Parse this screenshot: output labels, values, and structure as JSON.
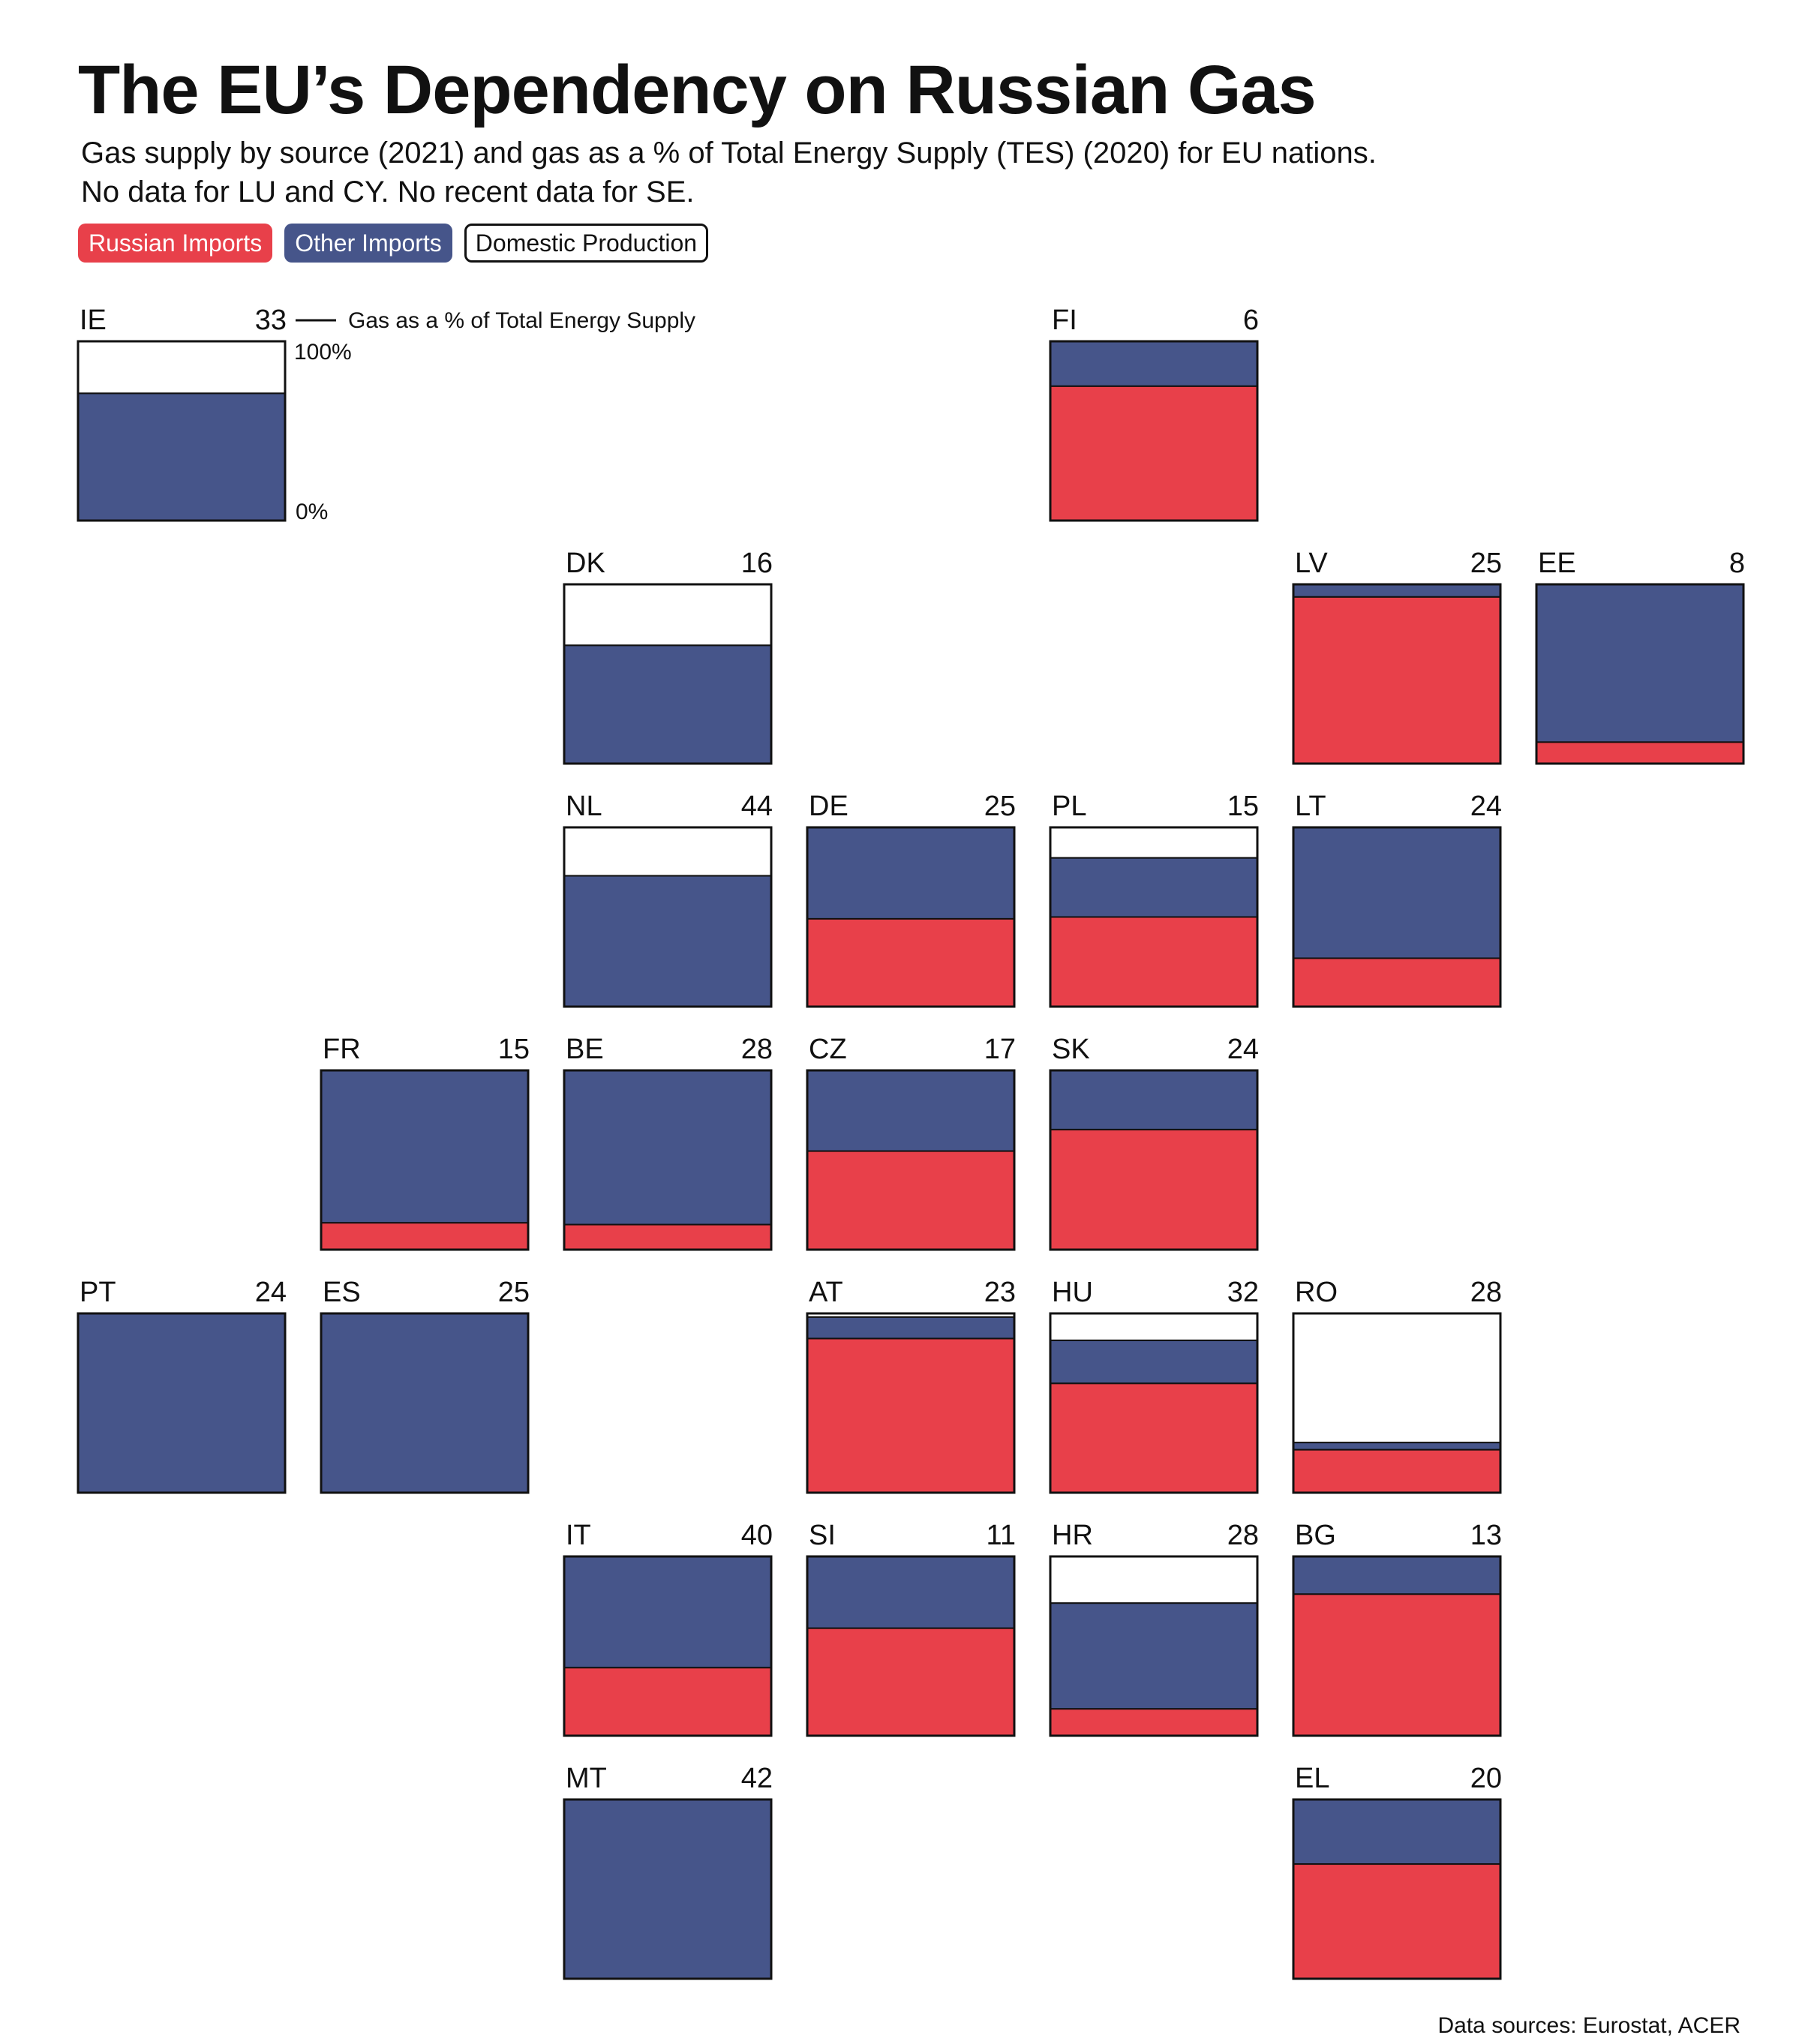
{
  "title": "The EU’s Dependency on Russian Gas",
  "subtitle": {
    "line1": "Gas supply by source (2021) and gas as a % of Total Energy Supply (TES) (2020) for EU nations.",
    "line2": "No data for LU and CY. No recent data for SE."
  },
  "legend": {
    "russian": "Russian Imports",
    "other": "Other Imports",
    "domestic": "Domestic Production"
  },
  "colors": {
    "russian": "#E8404A",
    "other": "#46558A",
    "domestic": "#FFFFFF",
    "outline": "#111111"
  },
  "annotation": {
    "tes_label": "Gas as a % of Total Energy Supply",
    "axis_top": "100%",
    "axis_bottom": "0%"
  },
  "source": "Data sources: Eurostat, ACER",
  "chart_data": {
    "type": "tile-grid stacked bar",
    "ylim": [
      0,
      100
    ],
    "series": [
      "Russian Imports",
      "Other Imports",
      "Domestic Production"
    ],
    "countries": [
      {
        "code": "IE",
        "tes": 33,
        "row": 0,
        "col": 0,
        "russian": 0,
        "other": 71,
        "domestic": 29
      },
      {
        "code": "FI",
        "tes": 6,
        "row": 0,
        "col": 4,
        "russian": 75,
        "other": 25,
        "domestic": 0
      },
      {
        "code": "DK",
        "tes": 16,
        "row": 1,
        "col": 2,
        "russian": 0,
        "other": 66,
        "domestic": 34
      },
      {
        "code": "LV",
        "tes": 25,
        "row": 1,
        "col": 5,
        "russian": 93,
        "other": 7,
        "domestic": 0
      },
      {
        "code": "EE",
        "tes": 8,
        "row": 1,
        "col": 6,
        "russian": 12,
        "other": 88,
        "domestic": 0
      },
      {
        "code": "NL",
        "tes": 44,
        "row": 2,
        "col": 2,
        "russian": 0,
        "other": 73,
        "domestic": 27
      },
      {
        "code": "DE",
        "tes": 25,
        "row": 2,
        "col": 3,
        "russian": 49,
        "other": 51,
        "domestic": 0
      },
      {
        "code": "PL",
        "tes": 15,
        "row": 2,
        "col": 4,
        "russian": 50,
        "other": 33,
        "domestic": 17
      },
      {
        "code": "LT",
        "tes": 24,
        "row": 2,
        "col": 5,
        "russian": 27,
        "other": 73,
        "domestic": 0
      },
      {
        "code": "FR",
        "tes": 15,
        "row": 3,
        "col": 1,
        "russian": 15,
        "other": 85,
        "domestic": 0
      },
      {
        "code": "BE",
        "tes": 28,
        "row": 3,
        "col": 2,
        "russian": 14,
        "other": 86,
        "domestic": 0
      },
      {
        "code": "CZ",
        "tes": 17,
        "row": 3,
        "col": 3,
        "russian": 55,
        "other": 45,
        "domestic": 0
      },
      {
        "code": "SK",
        "tes": 24,
        "row": 3,
        "col": 4,
        "russian": 67,
        "other": 33,
        "domestic": 0
      },
      {
        "code": "PT",
        "tes": 24,
        "row": 4,
        "col": 0,
        "russian": 0,
        "other": 100,
        "domestic": 0
      },
      {
        "code": "ES",
        "tes": 25,
        "row": 4,
        "col": 1,
        "russian": 0,
        "other": 100,
        "domestic": 0
      },
      {
        "code": "AT",
        "tes": 23,
        "row": 4,
        "col": 3,
        "russian": 86,
        "other": 12,
        "domestic": 2
      },
      {
        "code": "HU",
        "tes": 32,
        "row": 4,
        "col": 4,
        "russian": 61,
        "other": 24,
        "domestic": 15
      },
      {
        "code": "RO",
        "tes": 28,
        "row": 4,
        "col": 5,
        "russian": 24,
        "other": 4,
        "domestic": 72
      },
      {
        "code": "IT",
        "tes": 40,
        "row": 5,
        "col": 2,
        "russian": 38,
        "other": 62,
        "domestic": 0
      },
      {
        "code": "SI",
        "tes": 11,
        "row": 5,
        "col": 3,
        "russian": 60,
        "other": 40,
        "domestic": 0
      },
      {
        "code": "HR",
        "tes": 28,
        "row": 5,
        "col": 4,
        "russian": 15,
        "other": 59,
        "domestic": 26
      },
      {
        "code": "BG",
        "tes": 13,
        "row": 5,
        "col": 5,
        "russian": 79,
        "other": 21,
        "domestic": 0
      },
      {
        "code": "MT",
        "tes": 42,
        "row": 6,
        "col": 2,
        "russian": 0,
        "other": 100,
        "domestic": 0
      },
      {
        "code": "EL",
        "tes": 20,
        "row": 6,
        "col": 5,
        "russian": 64,
        "other": 36,
        "domestic": 0
      }
    ]
  }
}
